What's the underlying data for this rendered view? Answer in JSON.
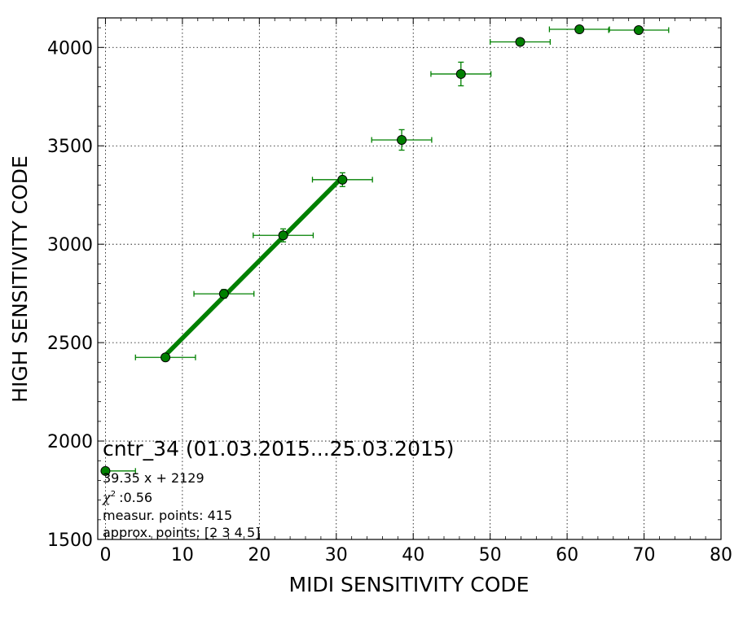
{
  "chart_data": {
    "type": "scatter",
    "title": "cntr_34 (01.03.2015...25.03.2015)",
    "xlabel": "MIDI SENSITIVITY CODE",
    "ylabel": "HIGH SENSITIVITY CODE",
    "xlim": [
      -1,
      80
    ],
    "ylim": [
      1500,
      4150
    ],
    "xticks": [
      0,
      10,
      20,
      30,
      40,
      50,
      60,
      70,
      80
    ],
    "yticks": [
      1500,
      2000,
      2500,
      3000,
      3500,
      4000
    ],
    "grid": true,
    "marker_color": "#008000",
    "line_color": "#008000",
    "points": [
      {
        "x": 7.8,
        "y": 2425,
        "xerr": 3.9,
        "yerr": 10
      },
      {
        "x": 15.4,
        "y": 2748,
        "xerr": 3.9,
        "yerr": 22
      },
      {
        "x": 23.1,
        "y": 3045,
        "xerr": 3.9,
        "yerr": 33
      },
      {
        "x": 30.8,
        "y": 3328,
        "xerr": 3.9,
        "yerr": 35
      },
      {
        "x": 38.5,
        "y": 3530,
        "xerr": 3.9,
        "yerr": 52
      },
      {
        "x": 46.2,
        "y": 3865,
        "xerr": 3.9,
        "yerr": 60
      },
      {
        "x": 53.9,
        "y": 4028,
        "xerr": 3.9,
        "yerr": 18
      },
      {
        "x": 61.6,
        "y": 4092,
        "xerr": 3.9,
        "yerr": 0
      },
      {
        "x": 69.3,
        "y": 4088,
        "xerr": 3.9,
        "yerr": 0
      }
    ],
    "fit": {
      "slope": 39.35,
      "intercept": 2129,
      "x_from": 7.8,
      "x_to": 30.8
    },
    "legend_marker": {
      "x": 0,
      "y": 1848,
      "xerr": 3.9
    }
  },
  "annotations": {
    "fit_equation": "39.35 x + 2129",
    "chi2": ":0.56",
    "measur_points": "measur. points: 415",
    "approx_points": "approx. points: [2 3 4 5]"
  }
}
